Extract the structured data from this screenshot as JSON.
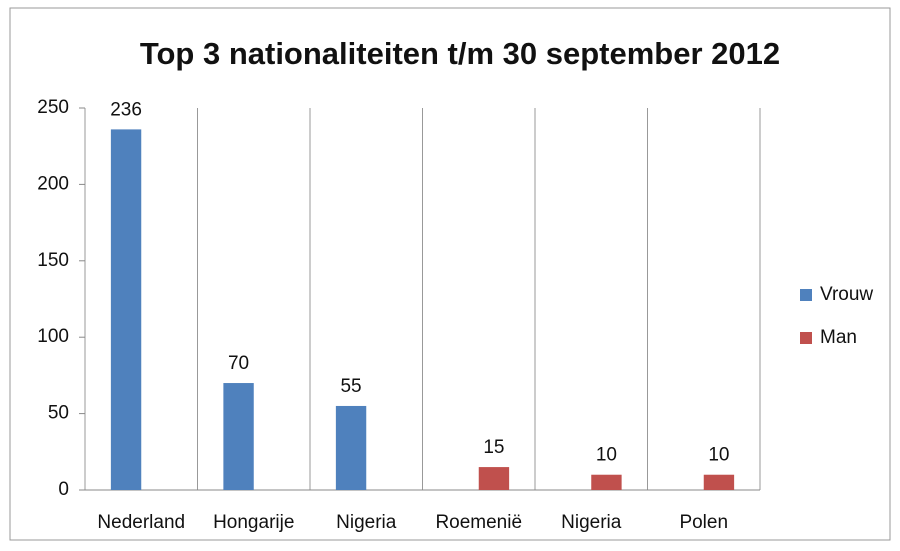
{
  "chart_data": {
    "type": "bar",
    "title": "Top 3 nationaliteiten t/m 30 september 2012",
    "categories": [
      "Nederland",
      "Hongarije",
      "Nigeria",
      "Roemenië",
      "Nigeria",
      "Polen"
    ],
    "series": [
      {
        "name": "Vrouw",
        "color": "#4f81bd",
        "values": [
          236,
          70,
          55,
          null,
          null,
          null
        ]
      },
      {
        "name": "Man",
        "color": "#c0504d",
        "values": [
          null,
          null,
          null,
          15,
          10,
          10
        ]
      }
    ],
    "ylim": [
      0,
      250
    ],
    "yticks": [
      0,
      50,
      100,
      150,
      200,
      250
    ],
    "legend": "right"
  }
}
